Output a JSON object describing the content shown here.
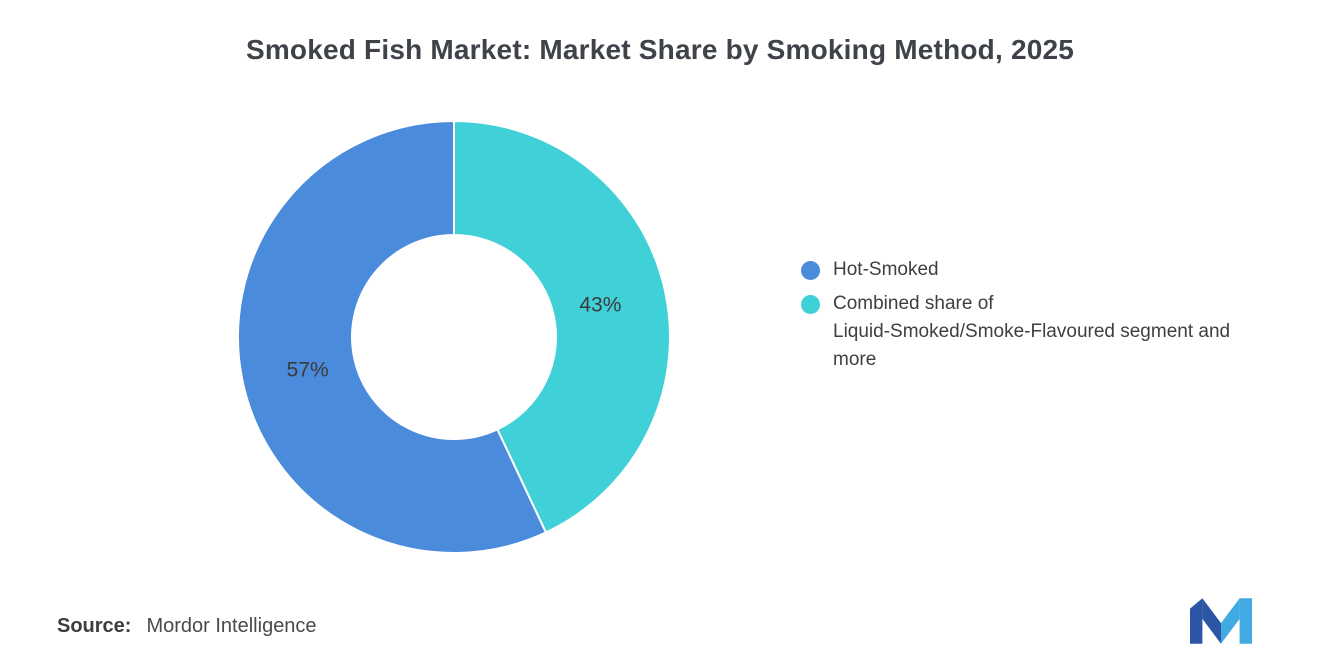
{
  "title": "Smoked Fish Market: Market Share by Smoking Method, 2025",
  "chart_data": {
    "type": "pie",
    "subtype": "donut",
    "title": "Smoked Fish Market: Market Share by Smoking Method, 2025",
    "labels": [
      "Hot-Smoked",
      "Combined share of Liquid-Smoked/Smoke-Flavoured segment and more"
    ],
    "values": [
      57,
      43
    ],
    "value_labels": [
      "57%",
      "43%"
    ],
    "colors": [
      "#4A8BDC",
      "#3FD0D8"
    ],
    "legend_position": "right",
    "start_angle": "top",
    "direction": "counterclockwise",
    "inner_radius_ratio": 0.47
  },
  "legend": {
    "items": [
      {
        "label": "Hot-Smoked",
        "color": "#4A8BDC"
      },
      {
        "label": "Combined share of\nLiquid-Smoked/Smoke-Flavoured segment and\nmore",
        "color": "#3FD0D8"
      }
    ]
  },
  "source": {
    "label": "Source:",
    "value": "Mordor Intelligence"
  },
  "logo": {
    "name": "Mordor Intelligence logo",
    "dark": "#2C55A5",
    "light": "#41AAE2"
  }
}
